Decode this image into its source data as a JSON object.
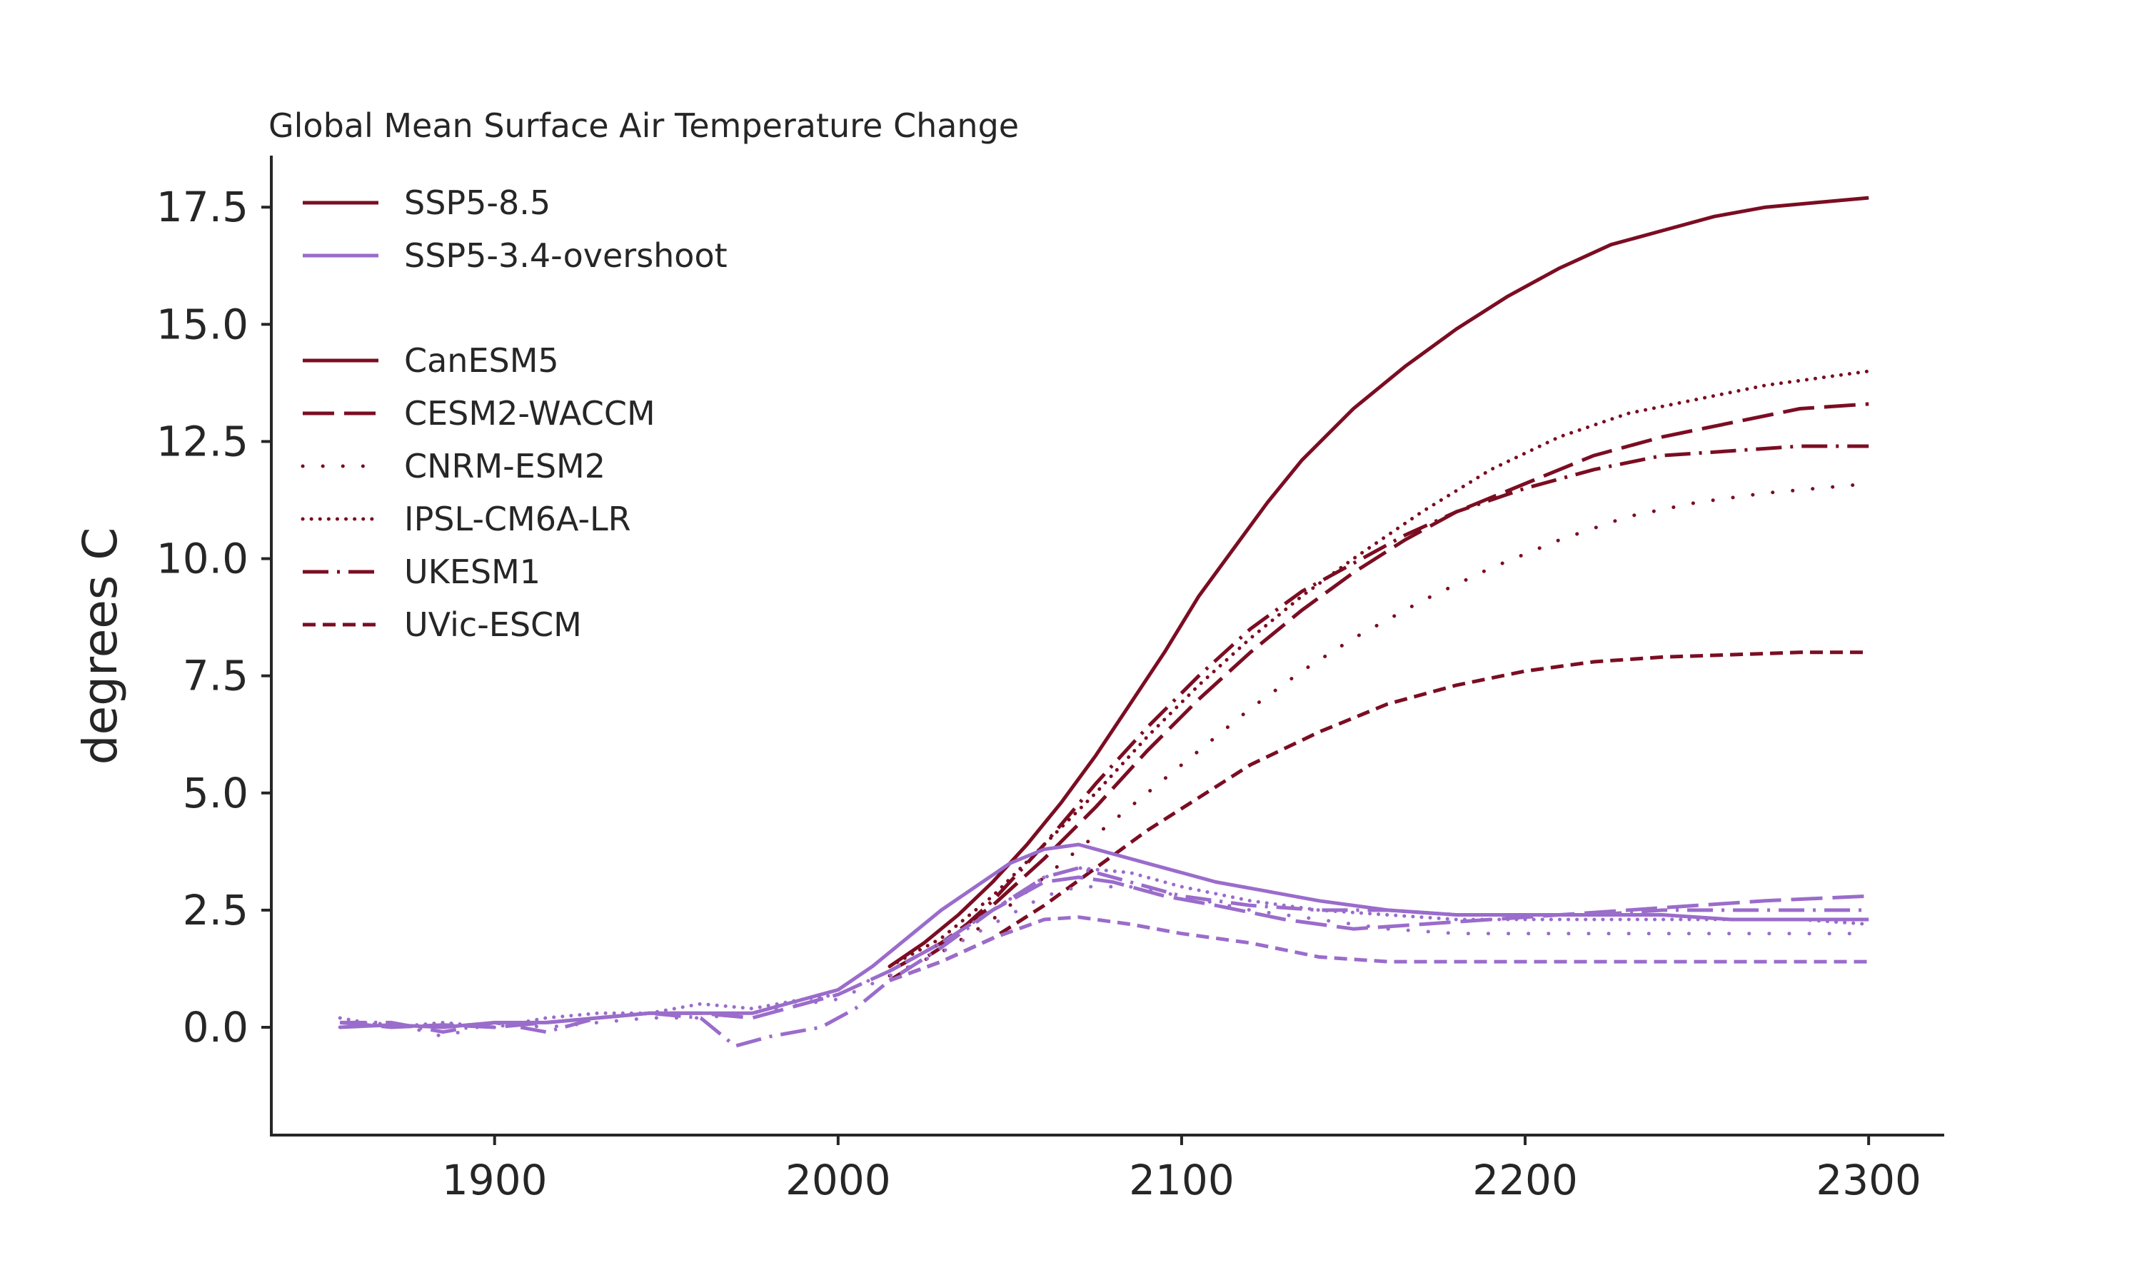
{
  "chart_data": {
    "type": "line",
    "title": "Global Mean Surface Air Temperature Change",
    "xlabel": "",
    "ylabel": "degrees C",
    "xlim": [
      1835,
      2322
    ],
    "ylim": [
      -2.3,
      18.6
    ],
    "xticks": [
      1900,
      2000,
      2100,
      2200,
      2300
    ],
    "xtick_labels": [
      "1900",
      "2000",
      "2100",
      "2200",
      "2300"
    ],
    "yticks": [
      0,
      2.5,
      5,
      7.5,
      10,
      12.5,
      15,
      17.5
    ],
    "ytick_labels": [
      "0.0",
      "2.5",
      "5.0",
      "7.5",
      "10.0",
      "12.5",
      "15.0",
      "17.5"
    ],
    "grid": false,
    "legend_position": "top-left",
    "colors": {
      "SSP5-8.5": "#7b0d22",
      "SSP5-3.4-overshoot": "#9a6ccb",
      "axis": "#262626"
    },
    "legend": {
      "scenarios": [
        {
          "label": "SSP5-8.5",
          "color": "#7b0d22",
          "style": "solid"
        },
        {
          "label": "SSP5-3.4-overshoot",
          "color": "#9a6ccb",
          "style": "solid"
        }
      ],
      "models": [
        {
          "label": "CanESM5",
          "style": "solid"
        },
        {
          "label": "CESM2-WACCM",
          "style": "longdash"
        },
        {
          "label": "CNRM-ESM2",
          "style": "sparsedot"
        },
        {
          "label": "IPSL-CM6A-LR",
          "style": "densedot"
        },
        {
          "label": "UKESM1",
          "style": "dashdot"
        },
        {
          "label": "UVic-ESCM",
          "style": "dash"
        }
      ]
    },
    "series": [
      {
        "scenario": "SSP5-8.5",
        "model": "CanESM5",
        "style": "solid",
        "x": [
          2015,
          2025,
          2035,
          2045,
          2055,
          2065,
          2075,
          2085,
          2095,
          2105,
          2115,
          2125,
          2135,
          2150,
          2165,
          2180,
          2195,
          2210,
          2225,
          2240,
          2255,
          2270,
          2285,
          2300
        ],
        "y": [
          1.3,
          1.8,
          2.4,
          3.1,
          3.9,
          4.8,
          5.8,
          6.9,
          8.0,
          9.2,
          10.2,
          11.2,
          12.1,
          13.2,
          14.1,
          14.9,
          15.6,
          16.2,
          16.7,
          17.0,
          17.3,
          17.5,
          17.6,
          17.7
        ]
      },
      {
        "scenario": "SSP5-8.5",
        "model": "CESM2-WACCM",
        "style": "longdash",
        "x": [
          2015,
          2030,
          2045,
          2060,
          2075,
          2090,
          2105,
          2120,
          2135,
          2150,
          2165,
          2180,
          2200,
          2220,
          2240,
          2260,
          2280,
          2300
        ],
        "y": [
          1.2,
          1.8,
          2.6,
          3.6,
          4.7,
          5.9,
          7.0,
          8.0,
          8.9,
          9.7,
          10.4,
          11.0,
          11.6,
          12.2,
          12.6,
          12.9,
          13.2,
          13.3
        ]
      },
      {
        "scenario": "SSP5-8.5",
        "model": "CNRM-ESM2",
        "style": "sparsedot",
        "x": [
          2015,
          2030,
          2045,
          2060,
          2075,
          2090,
          2105,
          2120,
          2135,
          2150,
          2170,
          2190,
          2210,
          2230,
          2250,
          2270,
          2300
        ],
        "y": [
          1.1,
          1.6,
          2.3,
          3.2,
          4.1,
          5.0,
          5.9,
          6.8,
          7.6,
          8.3,
          9.1,
          9.8,
          10.4,
          10.9,
          11.2,
          11.4,
          11.6
        ]
      },
      {
        "scenario": "SSP5-8.5",
        "model": "IPSL-CM6A-LR",
        "style": "densedot",
        "x": [
          2015,
          2030,
          2045,
          2060,
          2075,
          2090,
          2105,
          2120,
          2135,
          2150,
          2170,
          2190,
          2210,
          2230,
          2250,
          2270,
          2300
        ],
        "y": [
          1.3,
          1.9,
          2.8,
          3.9,
          5.0,
          6.2,
          7.3,
          8.3,
          9.2,
          10.0,
          11.0,
          11.9,
          12.6,
          13.1,
          13.4,
          13.7,
          14.0
        ]
      },
      {
        "scenario": "SSP5-8.5",
        "model": "UKESM1",
        "style": "dashdot",
        "x": [
          2015,
          2030,
          2045,
          2060,
          2075,
          2090,
          2105,
          2120,
          2135,
          2150,
          2165,
          2180,
          2200,
          2220,
          2240,
          2260,
          2280,
          2300
        ],
        "y": [
          1.0,
          1.7,
          2.7,
          3.9,
          5.2,
          6.4,
          7.5,
          8.5,
          9.3,
          9.9,
          10.5,
          11.0,
          11.5,
          11.9,
          12.2,
          12.3,
          12.4,
          12.4
        ]
      },
      {
        "scenario": "SSP5-8.5",
        "model": "UVic-ESCM",
        "style": "dash",
        "x": [
          2015,
          2030,
          2045,
          2060,
          2075,
          2090,
          2105,
          2120,
          2140,
          2160,
          2180,
          2200,
          2220,
          2240,
          2260,
          2280,
          2300
        ],
        "y": [
          1.0,
          1.4,
          1.9,
          2.6,
          3.4,
          4.2,
          4.9,
          5.6,
          6.3,
          6.9,
          7.3,
          7.6,
          7.8,
          7.9,
          7.95,
          8.0,
          8.0
        ]
      },
      {
        "scenario": "SSP5-3.4-overshoot",
        "model": "CanESM5",
        "style": "solid",
        "x": [
          1855,
          1870,
          1885,
          1900,
          1915,
          1930,
          1945,
          1960,
          1975,
          1990,
          2000,
          2010,
          2020,
          2030,
          2040,
          2050,
          2060,
          2070,
          2080,
          2090,
          2100,
          2110,
          2125,
          2140,
          2160,
          2180,
          2200,
          2220,
          2240,
          2260,
          2280,
          2300
        ],
        "y": [
          0.0,
          0.05,
          0.0,
          0.1,
          0.1,
          0.2,
          0.3,
          0.3,
          0.3,
          0.6,
          0.8,
          1.3,
          1.9,
          2.5,
          3.0,
          3.5,
          3.8,
          3.9,
          3.7,
          3.5,
          3.3,
          3.1,
          2.9,
          2.7,
          2.5,
          2.4,
          2.4,
          2.4,
          2.4,
          2.3,
          2.3,
          2.3
        ]
      },
      {
        "scenario": "SSP5-3.4-overshoot",
        "model": "CESM2-WACCM",
        "style": "longdash",
        "x": [
          1855,
          1870,
          1885,
          1900,
          1915,
          1930,
          1945,
          1960,
          1975,
          1990,
          2000,
          2015,
          2030,
          2045,
          2060,
          2070,
          2080,
          2095,
          2110,
          2130,
          2150,
          2170,
          2190,
          2210,
          2230,
          2250,
          2270,
          2300
        ],
        "y": [
          0.1,
          0.0,
          0.05,
          0.0,
          0.1,
          0.2,
          0.3,
          0.3,
          0.2,
          0.5,
          0.7,
          1.2,
          1.8,
          2.5,
          3.1,
          3.2,
          3.1,
          2.8,
          2.6,
          2.3,
          2.1,
          2.2,
          2.3,
          2.4,
          2.5,
          2.6,
          2.7,
          2.8
        ]
      },
      {
        "scenario": "SSP5-3.4-overshoot",
        "model": "CNRM-ESM2",
        "style": "sparsedot",
        "x": [
          1855,
          1870,
          1885,
          1900,
          1915,
          1930,
          1945,
          1960,
          1975,
          1990,
          2000,
          2015,
          2030,
          2045,
          2060,
          2070,
          2085,
          2100,
          2120,
          2140,
          2160,
          2180,
          2200,
          2220,
          2240,
          2260,
          2280,
          2300
        ],
        "y": [
          0.0,
          0.1,
          -0.2,
          0.1,
          0.0,
          0.1,
          0.2,
          0.2,
          0.3,
          0.5,
          0.6,
          1.1,
          1.6,
          2.2,
          2.8,
          3.0,
          3.0,
          2.8,
          2.5,
          2.3,
          2.1,
          2.0,
          2.0,
          2.0,
          2.0,
          2.0,
          2.0,
          2.0
        ]
      },
      {
        "scenario": "SSP5-3.4-overshoot",
        "model": "IPSL-CM6A-LR",
        "style": "densedot",
        "x": [
          1855,
          1870,
          1885,
          1900,
          1915,
          1930,
          1945,
          1960,
          1975,
          1990,
          2000,
          2015,
          2030,
          2045,
          2060,
          2070,
          2085,
          2100,
          2120,
          2140,
          2160,
          2180,
          2200,
          2220,
          2240,
          2260,
          2280,
          2300
        ],
        "y": [
          0.2,
          0.0,
          0.1,
          0.0,
          0.2,
          0.3,
          0.3,
          0.5,
          0.4,
          0.6,
          0.7,
          1.2,
          1.8,
          2.5,
          3.2,
          3.4,
          3.3,
          3.0,
          2.7,
          2.5,
          2.4,
          2.3,
          2.3,
          2.3,
          2.3,
          2.3,
          2.3,
          2.2
        ]
      },
      {
        "scenario": "SSP5-3.4-overshoot",
        "model": "UKESM1",
        "style": "dashdot",
        "x": [
          1855,
          1870,
          1885,
          1900,
          1915,
          1930,
          1945,
          1960,
          1970,
          1980,
          1995,
          2005,
          2015,
          2030,
          2045,
          2060,
          2070,
          2085,
          2100,
          2120,
          2140,
          2160,
          2180,
          2200,
          2220,
          2240,
          2260,
          2280,
          2300
        ],
        "y": [
          0.1,
          0.1,
          -0.1,
          0.1,
          -0.1,
          0.2,
          0.3,
          0.2,
          -0.4,
          -0.2,
          0.0,
          0.4,
          1.0,
          1.7,
          2.5,
          3.2,
          3.4,
          3.1,
          2.8,
          2.6,
          2.5,
          2.5,
          2.4,
          2.4,
          2.4,
          2.5,
          2.5,
          2.5,
          2.5
        ]
      },
      {
        "scenario": "SSP5-3.4-overshoot",
        "model": "UVic-ESCM",
        "style": "dash",
        "x": [
          2015,
          2030,
          2045,
          2060,
          2070,
          2085,
          2100,
          2120,
          2140,
          2160,
          2180,
          2200,
          2220,
          2240,
          2260,
          2280,
          2300
        ],
        "y": [
          1.0,
          1.4,
          1.9,
          2.3,
          2.35,
          2.2,
          2.0,
          1.8,
          1.5,
          1.4,
          1.4,
          1.4,
          1.4,
          1.4,
          1.4,
          1.4,
          1.4
        ]
      }
    ]
  }
}
